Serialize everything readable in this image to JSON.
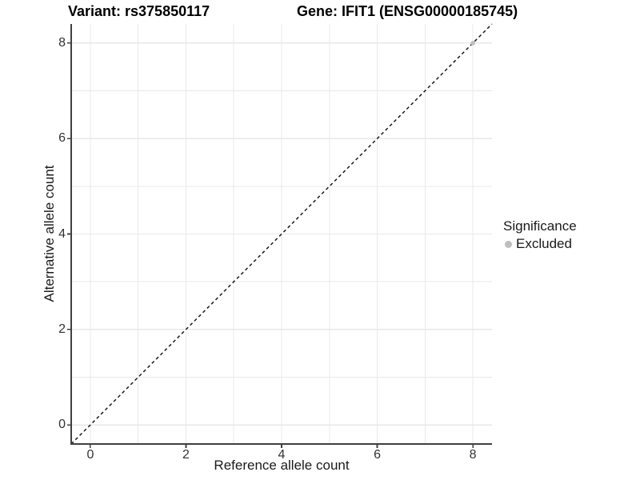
{
  "titles": {
    "variant": "Variant: rs375850117",
    "gene": "Gene: IFIT1 (ENSG00000185745)"
  },
  "legend": {
    "title": "Significance",
    "items": [
      {
        "label": "Excluded",
        "color": "#bebebe"
      }
    ]
  },
  "chart_data": {
    "type": "scatter",
    "title": "Variant: rs375850117 / Gene: IFIT1 (ENSG00000185745)",
    "xlabel": "Reference allele count",
    "ylabel": "Alternative allele count",
    "xlim": [
      -0.4,
      8.4
    ],
    "ylim": [
      -0.4,
      8.4
    ],
    "xticks": [
      0,
      2,
      4,
      6,
      8
    ],
    "yticks": [
      0,
      2,
      4,
      6,
      8
    ],
    "minor_xticks": [
      1,
      3,
      5,
      7
    ],
    "minor_yticks": [
      1,
      3,
      5,
      7
    ],
    "grid": true,
    "legend_position": "right",
    "series": [
      {
        "name": "Excluded",
        "color": "#bebebe",
        "points": [
          [
            8,
            8
          ]
        ]
      }
    ],
    "reference_line": {
      "type": "identity y=x",
      "style": "dashed",
      "color": "#1a1a1a"
    }
  },
  "colors": {
    "background": "#ffffff",
    "grid": "#e8e8e8",
    "axis": "#404040",
    "dashed_line": "#1a1a1a",
    "excluded": "#bebebe",
    "text": "#000000"
  }
}
